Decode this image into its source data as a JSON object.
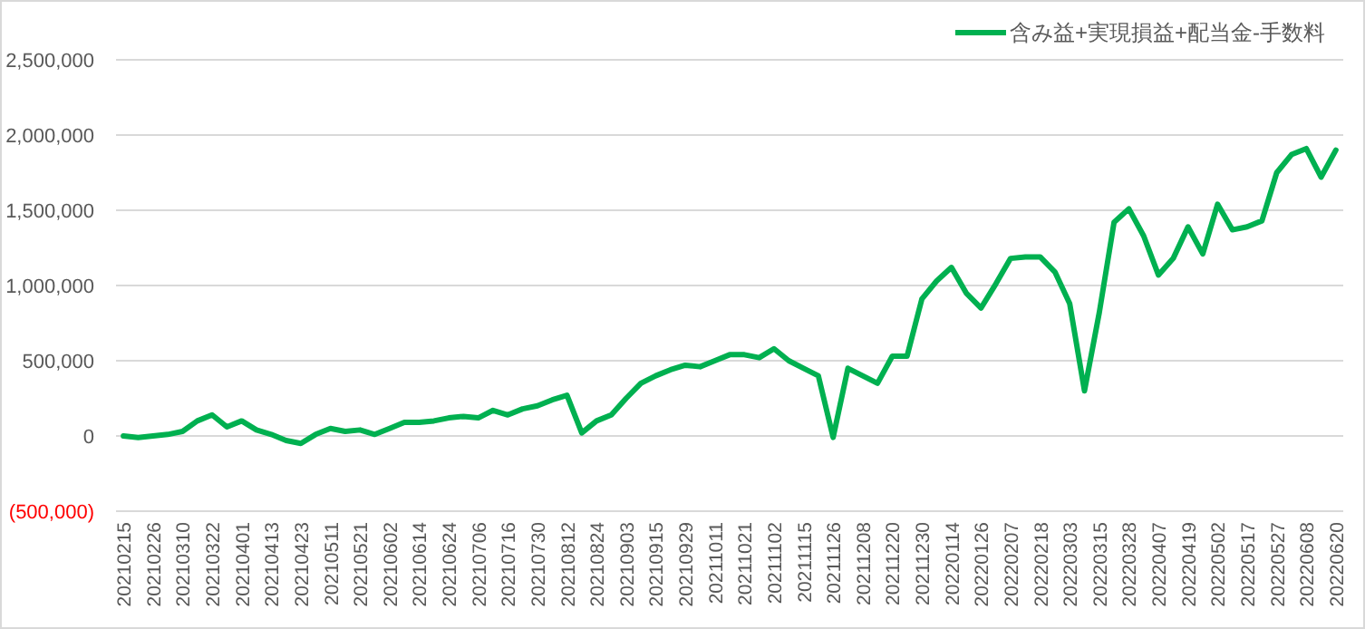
{
  "chart_data": {
    "type": "line",
    "categories": [
      "20210215",
      null,
      "20210226",
      null,
      "20210310",
      null,
      "20210322",
      null,
      "20210401",
      null,
      "20210413",
      null,
      "20210423",
      null,
      "20210511",
      null,
      "20210521",
      null,
      "20210602",
      null,
      "20210614",
      null,
      "20210624",
      null,
      "20210706",
      null,
      "20210716",
      null,
      "20210730",
      null,
      "20210812",
      null,
      "20210824",
      null,
      "20210903",
      null,
      "20210915",
      null,
      "20210929",
      null,
      "20211011",
      null,
      "20211021",
      null,
      "20211102",
      null,
      "20211115",
      null,
      "20211126",
      null,
      "20211208",
      null,
      "20211220",
      null,
      "20211230",
      null,
      "20220114",
      null,
      "20220126",
      null,
      "20220207",
      null,
      "20220218",
      null,
      "20220303",
      null,
      "20220315",
      null,
      "20220328",
      null,
      "20220407",
      null,
      "20220419",
      null,
      "20220502",
      null,
      "20220517",
      null,
      "20220527",
      null,
      "20220608",
      null,
      "20220620"
    ],
    "series": [
      {
        "name": "含み益+実現損益+配当金-手数料",
        "color": "#00b050",
        "values": [
          0,
          -10000,
          0,
          10000,
          30000,
          100000,
          140000,
          60000,
          100000,
          40000,
          10000,
          -30000,
          -50000,
          10000,
          50000,
          30000,
          40000,
          10000,
          50000,
          90000,
          90000,
          100000,
          120000,
          130000,
          120000,
          170000,
          140000,
          180000,
          200000,
          240000,
          270000,
          20000,
          100000,
          140000,
          250000,
          350000,
          400000,
          440000,
          470000,
          460000,
          500000,
          540000,
          540000,
          520000,
          580000,
          500000,
          450000,
          400000,
          -10000,
          450000,
          400000,
          350000,
          530000,
          530000,
          910000,
          1030000,
          1120000,
          950000,
          850000,
          1010000,
          1180000,
          1190000,
          1190000,
          1090000,
          880000,
          300000,
          820000,
          1420000,
          1510000,
          1330000,
          1070000,
          1180000,
          1390000,
          1210000,
          1540000,
          1370000,
          1390000,
          1430000,
          1750000,
          1870000,
          1910000,
          1720000,
          1900000
        ]
      }
    ],
    "ylim": [
      -500000,
      2500000
    ],
    "yticks": [
      {
        "value": -500000,
        "label": "(500,000)"
      },
      {
        "value": 0,
        "label": "0"
      },
      {
        "value": 500000,
        "label": "500,000"
      },
      {
        "value": 1000000,
        "label": "1,000,000"
      },
      {
        "value": 1500000,
        "label": "1,500,000"
      },
      {
        "value": 2000000,
        "label": "2,000,000"
      },
      {
        "value": 2500000,
        "label": "2,500,000"
      }
    ],
    "grid": "y",
    "legend": "top right"
  }
}
